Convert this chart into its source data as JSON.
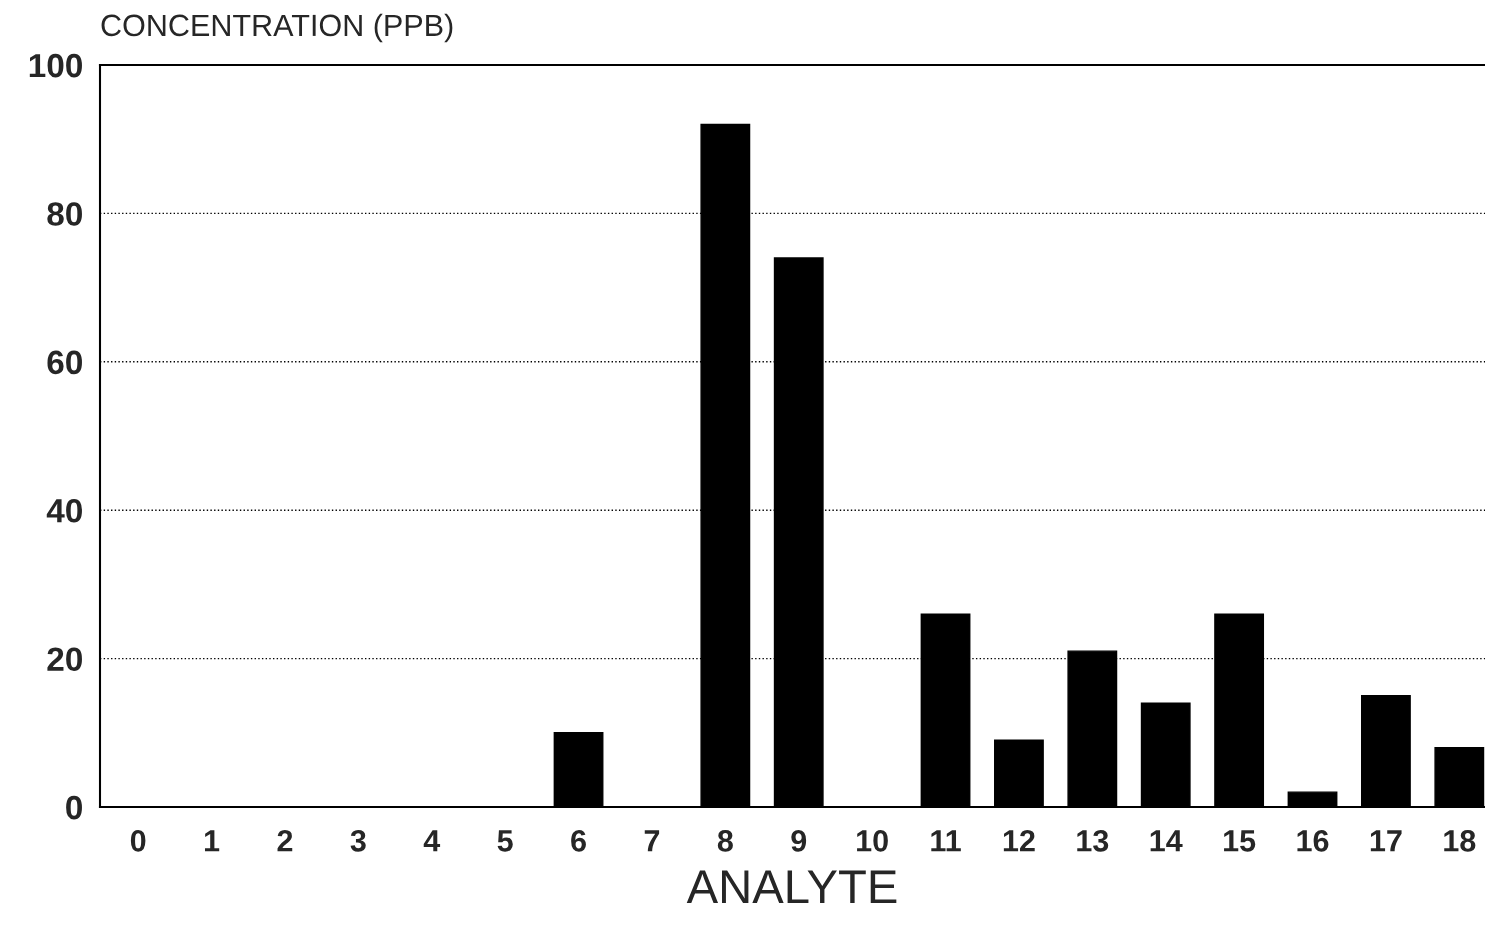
{
  "chart_data": {
    "type": "bar",
    "ylabel": "CONCENTRATION (PPB)",
    "xlabel": "ANALYTE",
    "categories": [
      "0",
      "1",
      "2",
      "3",
      "4",
      "5",
      "6",
      "7",
      "8",
      "9",
      "10",
      "11",
      "12",
      "13",
      "14",
      "15",
      "16",
      "17",
      "18"
    ],
    "values": [
      0,
      0,
      0,
      0,
      0,
      0,
      10,
      0,
      92,
      74,
      0,
      26,
      9,
      21,
      14,
      26,
      2,
      15,
      8
    ],
    "color": "#000000",
    "ylim": [
      0,
      100
    ],
    "yticks": [
      0,
      20,
      40,
      60,
      80,
      100
    ],
    "grid": "y"
  }
}
